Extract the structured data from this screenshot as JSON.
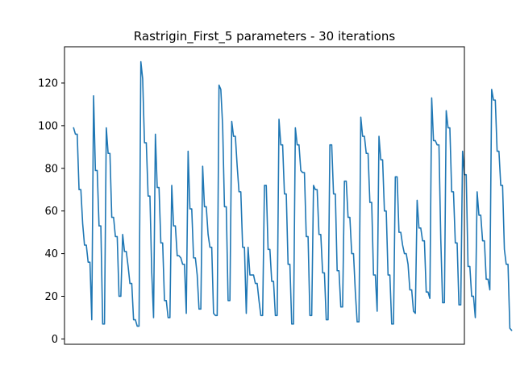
{
  "chart_data": {
    "type": "line",
    "title": "Rastrigin_First_5 parameters - 30 iterations",
    "xlabel": "",
    "ylabel": "",
    "x_ticks_visible": false,
    "xlim": [
      -5,
      215
    ],
    "ylim": [
      -2.5,
      137
    ],
    "y_ticks": [
      0,
      20,
      40,
      60,
      80,
      100,
      120
    ],
    "grid": false,
    "line_color": "#1f77b4",
    "series": [
      {
        "values": [
          99,
          96,
          96,
          70,
          70,
          54,
          44,
          44,
          36,
          36,
          9,
          114,
          79,
          79,
          53,
          53,
          7,
          7,
          99,
          87,
          87,
          57,
          57,
          48,
          48,
          20,
          20,
          49,
          41,
          41,
          34,
          26,
          26,
          9,
          9,
          6,
          6,
          130,
          122,
          92,
          92,
          67,
          67,
          31,
          10,
          96,
          71,
          71,
          45,
          45,
          18,
          18,
          10,
          10,
          72,
          53,
          53,
          39,
          39,
          38,
          35,
          35,
          12,
          88,
          61,
          61,
          38,
          38,
          30,
          14,
          14,
          81,
          62,
          62,
          49,
          43,
          43,
          12,
          11,
          11,
          119,
          117,
          100,
          62,
          62,
          18,
          18,
          102,
          95,
          95,
          81,
          69,
          69,
          43,
          43,
          12,
          43,
          30,
          30,
          30,
          26,
          26,
          18,
          11,
          11,
          72,
          72,
          42,
          42,
          27,
          27,
          11,
          11,
          103,
          91,
          91,
          68,
          68,
          35,
          35,
          7,
          7,
          99,
          91,
          91,
          79,
          78,
          78,
          48,
          48,
          11,
          11,
          72,
          70,
          70,
          49,
          49,
          31,
          31,
          9,
          9,
          91,
          91,
          68,
          68,
          32,
          32,
          15,
          15,
          74,
          74,
          57,
          57,
          40,
          40,
          22,
          8,
          8,
          104,
          95,
          95,
          87,
          87,
          64,
          64,
          30,
          30,
          13,
          95,
          84,
          84,
          60,
          60,
          30,
          30,
          7,
          7,
          76,
          76,
          50,
          50,
          44,
          40,
          40,
          35,
          23,
          23,
          13,
          12,
          65,
          52,
          52,
          46,
          46,
          22,
          22,
          19,
          113,
          93,
          93,
          91,
          91,
          47,
          17,
          17,
          107,
          99,
          99,
          69,
          69,
          45,
          45,
          16,
          16,
          88,
          77,
          77,
          34,
          34,
          20,
          20,
          10,
          69,
          58,
          58,
          46,
          46,
          28,
          28,
          23,
          117,
          112,
          112,
          88,
          88,
          72,
          72,
          42,
          35,
          35,
          5,
          4
        ]
      }
    ]
  }
}
